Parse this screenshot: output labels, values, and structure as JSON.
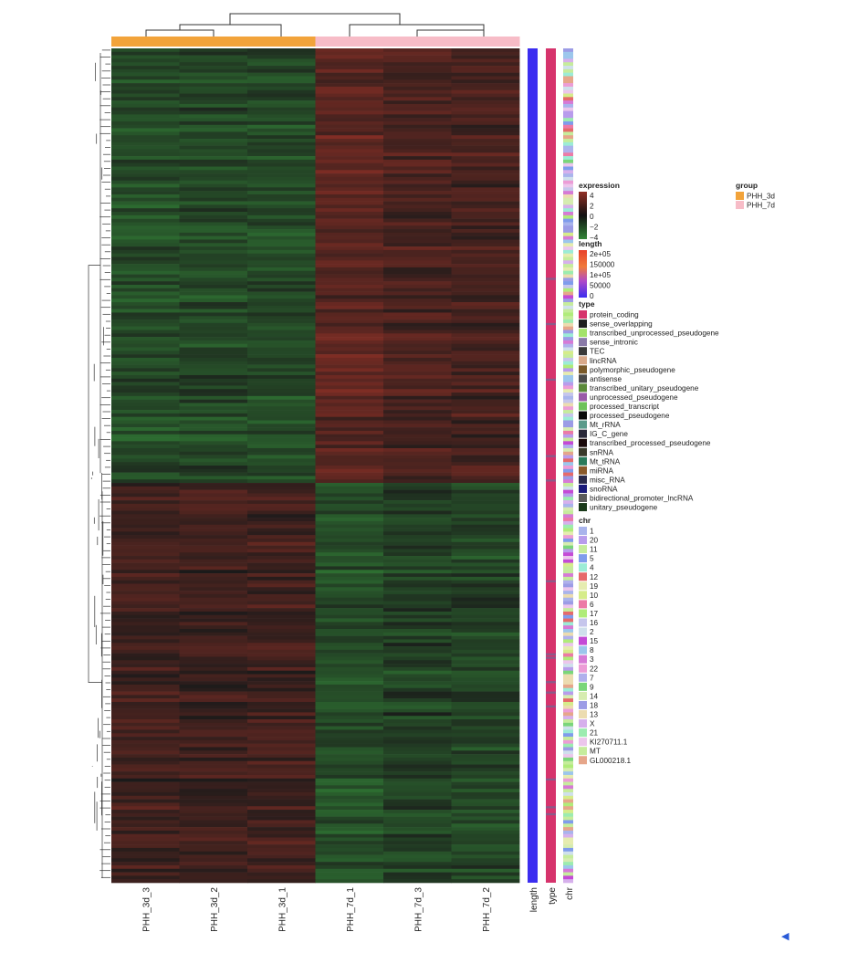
{
  "chart_data": {
    "type": "heatmap",
    "columns": [
      "PHH_3d_3",
      "PHH_3d_2",
      "PHH_3d_1",
      "PHH_7d_1",
      "PHH_7d_3",
      "PHH_7d_2"
    ],
    "column_groups": [
      "PHH_3d",
      "PHH_3d",
      "PHH_3d",
      "PHH_7d",
      "PHH_7d",
      "PHH_7d"
    ],
    "row_count": 240,
    "row_clusters": [
      {
        "fraction": 0.52,
        "mean_values": [
          -1.8,
          -1.6,
          -1.7,
          2.2,
          1.6,
          1.5
        ]
      },
      {
        "fraction": 0.48,
        "mean_values": [
          1.3,
          1.2,
          1.3,
          -1.9,
          -1.4,
          -1.6
        ]
      }
    ],
    "annotation_tracks": [
      "length",
      "type",
      "chr"
    ],
    "color_scale": {
      "min": -4,
      "max": 4,
      "low": "#3cb043",
      "mid": "#1a1a1a",
      "high": "#c0392b"
    },
    "legends": {
      "expression": {
        "title": "expression",
        "ticks": [
          "4",
          "2",
          "0",
          "−2",
          "−4"
        ]
      },
      "length": {
        "title": "length",
        "ticks": [
          "2e+05",
          "150000",
          "1e+05",
          "50000",
          "0"
        ]
      },
      "type": {
        "title": "type",
        "items": [
          {
            "label": "protein_coding",
            "color": "#d6336c"
          },
          {
            "label": "sense_overlapping",
            "color": "#1f1f1f"
          },
          {
            "label": "transcribed_unprocessed_pseudogene",
            "color": "#a4e36a"
          },
          {
            "label": "sense_intronic",
            "color": "#8a7aa8"
          },
          {
            "label": "TEC",
            "color": "#3a3a3a"
          },
          {
            "label": "lincRNA",
            "color": "#d9a98a"
          },
          {
            "label": "polymorphic_pseudogene",
            "color": "#7a5a2a"
          },
          {
            "label": "antisense",
            "color": "#4b4b4b"
          },
          {
            "label": "transcribed_unitary_pseudogene",
            "color": "#5b8a3a"
          },
          {
            "label": "unprocessed_pseudogene",
            "color": "#9a5aa8"
          },
          {
            "label": "processed_transcript",
            "color": "#6ec25a"
          },
          {
            "label": "processed_pseudogene",
            "color": "#0a0a0a"
          },
          {
            "label": "Mt_rRNA",
            "color": "#5a9a8a"
          },
          {
            "label": "IG_C_gene",
            "color": "#2a2a3a"
          },
          {
            "label": "transcribed_processed_pseudogene",
            "color": "#1a0a0a"
          },
          {
            "label": "snRNA",
            "color": "#3a3a2a"
          },
          {
            "label": "Mt_tRNA",
            "color": "#2a7a5a"
          },
          {
            "label": "miRNA",
            "color": "#8a5a2a"
          },
          {
            "label": "misc_RNA",
            "color": "#2a2a4a"
          },
          {
            "label": "snoRNA",
            "color": "#1a1a7a"
          },
          {
            "label": "bidirectional_promoter_lncRNA",
            "color": "#5a5a5a"
          },
          {
            "label": "unitary_pseudogene",
            "color": "#1a3a1a"
          }
        ]
      },
      "chr": {
        "title": "chr",
        "items": [
          {
            "label": "1",
            "color": "#a9b4ec"
          },
          {
            "label": "20",
            "color": "#b89cec"
          },
          {
            "label": "11",
            "color": "#c6ec9c"
          },
          {
            "label": "5",
            "color": "#7f9cec"
          },
          {
            "label": "4",
            "color": "#9cecd6"
          },
          {
            "label": "12",
            "color": "#e66a6a"
          },
          {
            "label": "19",
            "color": "#e6ecb0"
          },
          {
            "label": "10",
            "color": "#d6ec8a"
          },
          {
            "label": "6",
            "color": "#ec7aa6"
          },
          {
            "label": "17",
            "color": "#b0ec7a"
          },
          {
            "label": "16",
            "color": "#c6c6ec"
          },
          {
            "label": "2",
            "color": "#cfe0ec"
          },
          {
            "label": "15",
            "color": "#c44ad6"
          },
          {
            "label": "8",
            "color": "#9cc6ec"
          },
          {
            "label": "3",
            "color": "#d67ad6"
          },
          {
            "label": "22",
            "color": "#ec9cd6"
          },
          {
            "label": "7",
            "color": "#b0b0ec"
          },
          {
            "label": "9",
            "color": "#7ad67a"
          },
          {
            "label": "14",
            "color": "#d6ecb0"
          },
          {
            "label": "18",
            "color": "#9c9ce6"
          },
          {
            "label": "13",
            "color": "#ecdcb0"
          },
          {
            "label": "X",
            "color": "#d6b0ec"
          },
          {
            "label": "21",
            "color": "#9cecb0"
          },
          {
            "label": "KI270711.1",
            "color": "#ecc6ec"
          },
          {
            "label": "MT",
            "color": "#c6ec9c"
          },
          {
            "label": "GL000218.1",
            "color": "#e6a68a"
          }
        ]
      },
      "group": {
        "title": "group",
        "items": [
          {
            "label": "PHH_3d",
            "color": "#f2a33a"
          },
          {
            "label": "PHH_7d",
            "color": "#f7bcc7"
          }
        ]
      }
    }
  }
}
